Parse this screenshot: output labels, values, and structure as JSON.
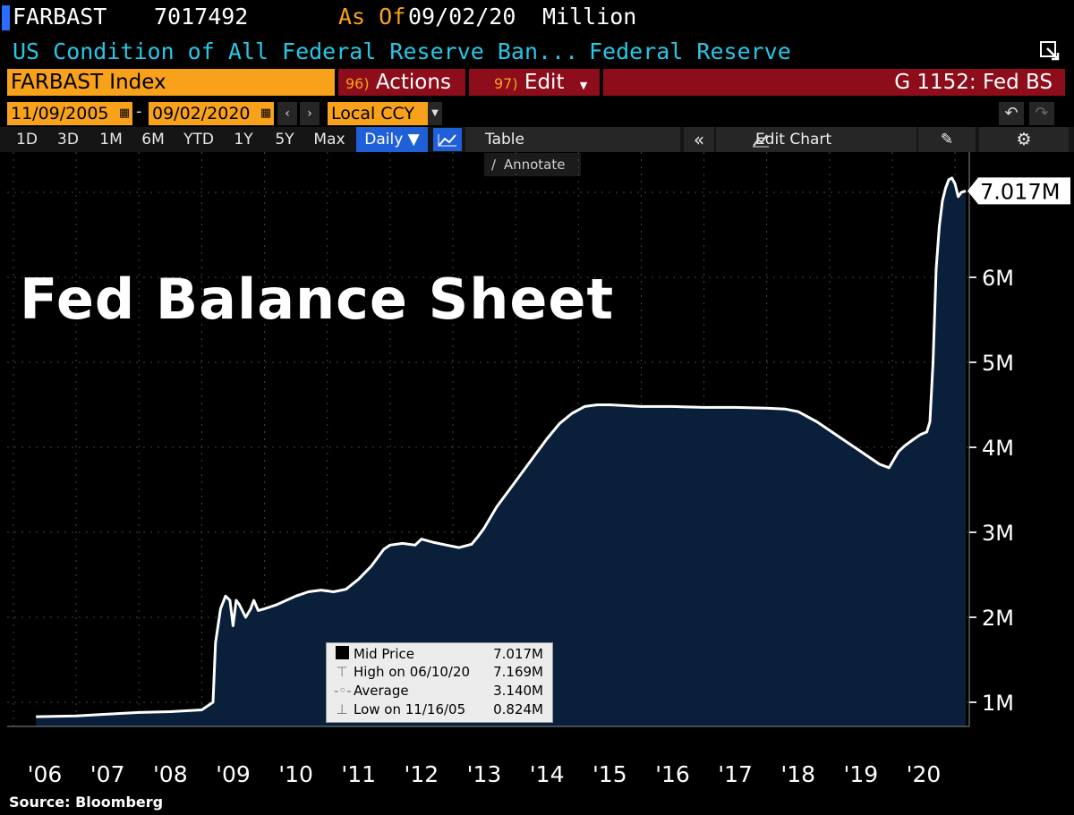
{
  "header": {
    "ticker": "FARBAST",
    "value": "7017492",
    "as_of_label": "As Of",
    "as_of_date": "09/02/20",
    "units": "Million",
    "description": "US Condition of All Federal Reserve Ban...",
    "source_name": "Federal Reserve",
    "colors": {
      "accent": "#f7a21a",
      "cyan": "#27c7e6",
      "red": "#8d0d1b",
      "blue": "#1f5fd8"
    }
  },
  "toolbar": {
    "security": "FARBAST Index",
    "actions_num": "96)",
    "actions_label": "Actions",
    "edit_num": "97)",
    "edit_label": "Edit",
    "chart_id": "G 1152: Fed BS",
    "start_date": "11/09/2005",
    "end_date": "09/02/2020",
    "currency": "Local CCY",
    "ranges": [
      "1D",
      "3D",
      "1M",
      "6M",
      "YTD",
      "1Y",
      "5Y",
      "Max"
    ],
    "frequency": "Daily",
    "table_label": "Table",
    "edit_chart_label": "Edit Chart",
    "annotate_label": "Annotate"
  },
  "chart_title": "Fed Balance Sheet",
  "source_note": "Source: Bloomberg",
  "last_value_label": "7.017M",
  "legend": {
    "mid_label": "Mid Price",
    "mid_value": "7.017M",
    "high_label": "High on 06/10/20",
    "high_value": "7.169M",
    "avg_label": "Average",
    "avg_value": "3.140M",
    "low_label": "Low on 11/16/05",
    "low_value": "0.824M"
  },
  "chart_data": {
    "type": "area",
    "title": "Fed Balance Sheet",
    "xlabel": "",
    "ylabel": "",
    "x_tick_labels": [
      "'06",
      "'07",
      "'08",
      "'09",
      "'10",
      "'11",
      "'12",
      "'13",
      "'14",
      "'15",
      "'16",
      "'17",
      "'18",
      "'19",
      "'20"
    ],
    "y_tick_labels": [
      "1M",
      "2M",
      "3M",
      "4M",
      "5M",
      "6M"
    ],
    "ylim": [
      0.75,
      7.55
    ],
    "grid": true,
    "series": [
      {
        "values_in_millions": true,
        "x": [
          2005.86,
          2006.5,
          2007.0,
          2007.5,
          2008.0,
          2008.5,
          2008.68,
          2008.72,
          2008.8,
          2008.88,
          2008.95,
          2009.0,
          2009.05,
          2009.1,
          2009.2,
          2009.28,
          2009.33,
          2009.4,
          2009.5,
          2009.7,
          2010.0,
          2010.2,
          2010.4,
          2010.6,
          2010.8,
          2011.0,
          2011.2,
          2011.4,
          2011.5,
          2011.7,
          2011.9,
          2012.0,
          2012.2,
          2012.4,
          2012.6,
          2012.8,
          2012.9,
          2013.0,
          2013.2,
          2013.4,
          2013.6,
          2013.8,
          2014.0,
          2014.2,
          2014.4,
          2014.6,
          2014.8,
          2015.0,
          2015.5,
          2016.0,
          2016.5,
          2017.0,
          2017.5,
          2017.8,
          2018.0,
          2018.3,
          2018.6,
          2019.0,
          2019.3,
          2019.45,
          2019.6,
          2019.7,
          2019.85,
          2019.95,
          2020.05,
          2020.1,
          2020.15,
          2020.2,
          2020.25,
          2020.3,
          2020.35,
          2020.4,
          2020.45,
          2020.5,
          2020.55,
          2020.6,
          2020.67
        ],
        "y": [
          0.83,
          0.84,
          0.86,
          0.88,
          0.89,
          0.91,
          1.0,
          1.7,
          2.1,
          2.25,
          2.2,
          1.9,
          2.2,
          2.15,
          2.0,
          2.1,
          2.2,
          2.08,
          2.1,
          2.15,
          2.25,
          2.3,
          2.32,
          2.3,
          2.33,
          2.45,
          2.6,
          2.8,
          2.85,
          2.87,
          2.85,
          2.92,
          2.88,
          2.85,
          2.82,
          2.86,
          2.95,
          3.05,
          3.3,
          3.5,
          3.7,
          3.9,
          4.1,
          4.28,
          4.4,
          4.48,
          4.5,
          4.5,
          4.48,
          4.48,
          4.47,
          4.47,
          4.46,
          4.45,
          4.42,
          4.3,
          4.15,
          3.95,
          3.8,
          3.76,
          3.95,
          4.02,
          4.1,
          4.15,
          4.18,
          4.3,
          5.0,
          6.1,
          6.6,
          6.9,
          7.05,
          7.15,
          7.169,
          7.1,
          6.95,
          7.0,
          7.017
        ]
      }
    ],
    "last_value": 7.017
  }
}
